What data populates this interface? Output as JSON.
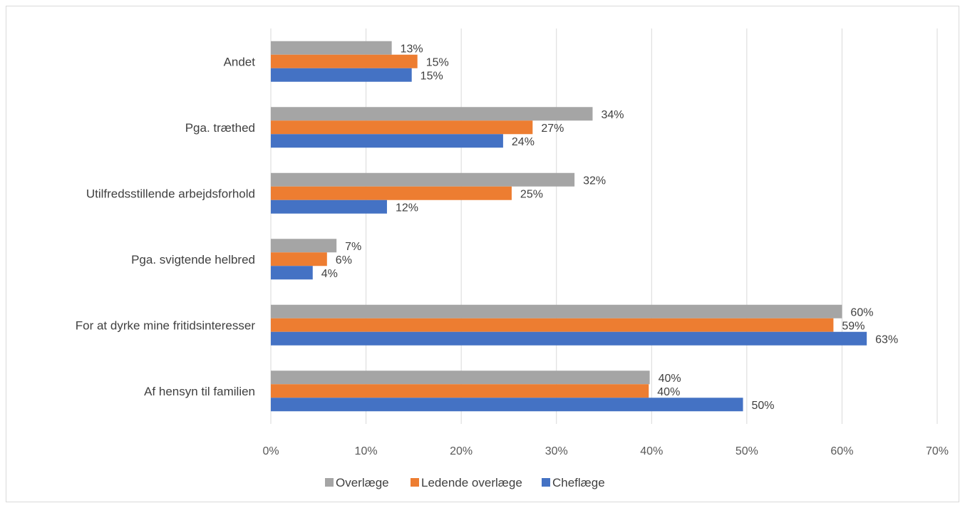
{
  "chart_data": {
    "type": "bar",
    "orientation": "horizontal",
    "categories": [
      "Andet",
      "Pga. træthed",
      "Utilfredsstillende arbejdsforhold",
      "Pga. svigtende helbred",
      "For at dyrke mine fritidsinteresser",
      "Af hensyn til familien"
    ],
    "series": [
      {
        "name": "Overlæge",
        "color": "#a5a5a5",
        "values": [
          12.7,
          33.8,
          31.9,
          6.9,
          60.0,
          39.8
        ],
        "labels": [
          "13%",
          "34%",
          "32%",
          "7%",
          "60%",
          "40%"
        ]
      },
      {
        "name": "Ledende overlæge",
        "color": "#ed7d31",
        "values": [
          15.4,
          27.5,
          25.3,
          5.9,
          59.1,
          39.7
        ],
        "labels": [
          "15%",
          "27%",
          "25%",
          "6%",
          "59%",
          "40%"
        ]
      },
      {
        "name": "Cheflæge",
        "color": "#4472c4",
        "values": [
          14.8,
          24.4,
          12.2,
          4.4,
          62.6,
          49.6
        ],
        "labels": [
          "15%",
          "24%",
          "12%",
          "4%",
          "63%",
          "50%"
        ]
      }
    ],
    "xlim": [
      0,
      70
    ],
    "x_ticks": [
      "0%",
      "10%",
      "20%",
      "30%",
      "40%",
      "50%",
      "60%",
      "70%"
    ],
    "grid": true,
    "legend_position": "bottom",
    "title": "",
    "xlabel": "",
    "ylabel": ""
  }
}
